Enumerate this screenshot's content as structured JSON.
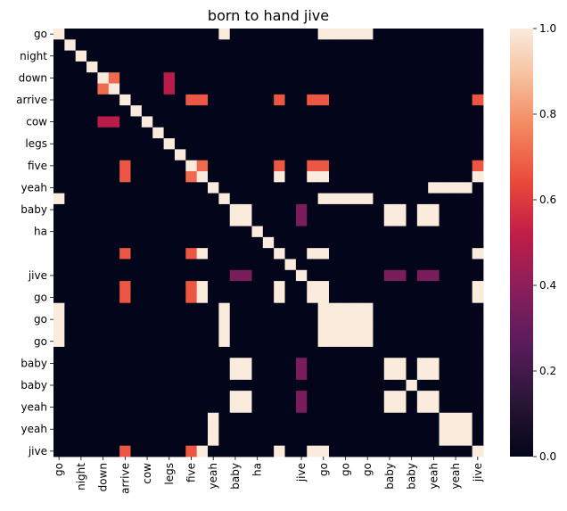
{
  "chart_data": {
    "type": "heatmap",
    "title": "born to hand jive",
    "x_labels": [
      "go",
      "",
      "night",
      "",
      "down",
      "",
      "arrive",
      "",
      "cow",
      "",
      "legs",
      "",
      "five",
      "",
      "yeah",
      "",
      "baby",
      "",
      "ha",
      "",
      "",
      "",
      "jive",
      "",
      "go",
      "",
      "go",
      "",
      "go",
      "",
      "baby",
      "",
      "baby",
      "",
      "yeah",
      "",
      "yeah",
      "",
      "jive"
    ],
    "y_labels": [
      "go",
      "",
      "night",
      "",
      "down",
      "",
      "arrive",
      "",
      "cow",
      "",
      "legs",
      "",
      "five",
      "",
      "yeah",
      "",
      "baby",
      "",
      "ha",
      "",
      "",
      "",
      "jive",
      "",
      "go",
      "",
      "go",
      "",
      "go",
      "",
      "baby",
      "",
      "baby",
      "",
      "yeah",
      "",
      "yeah",
      "",
      "jive"
    ],
    "colorbar": {
      "min": 0.0,
      "max": 1.0,
      "ticks": [
        "0.0",
        "0.2",
        "0.4",
        "0.6",
        "0.8",
        "1.0"
      ]
    },
    "cmap": "rocket",
    "values": [
      [
        1,
        0,
        0,
        0,
        0,
        0,
        0,
        0,
        0,
        0,
        0,
        0,
        0,
        0,
        0,
        1,
        0,
        0,
        0,
        0,
        0,
        0,
        0,
        0,
        1,
        1,
        1,
        1,
        1,
        0,
        0,
        0,
        0,
        0,
        0,
        0,
        0,
        0,
        0
      ],
      [
        0,
        1,
        0,
        0,
        0,
        0,
        0,
        0,
        0,
        0,
        0,
        0,
        0,
        0,
        0,
        0,
        0,
        0,
        0,
        0,
        0,
        0,
        0,
        0,
        0,
        0,
        0,
        0,
        0,
        0,
        0,
        0,
        0,
        0,
        0,
        0,
        0,
        0,
        0
      ],
      [
        0,
        0,
        1,
        0,
        0,
        0,
        0,
        0,
        0,
        0,
        0,
        0,
        0,
        0,
        0,
        0,
        0,
        0,
        0,
        0,
        0,
        0,
        0,
        0,
        0,
        0,
        0,
        0,
        0,
        0,
        0,
        0,
        0,
        0,
        0,
        0,
        0,
        0,
        0
      ],
      [
        0,
        0,
        0,
        1,
        0,
        0,
        0,
        0,
        0,
        0,
        0,
        0,
        0,
        0,
        0,
        0,
        0,
        0,
        0,
        0,
        0,
        0,
        0,
        0,
        0,
        0,
        0,
        0,
        0,
        0,
        0,
        0,
        0,
        0,
        0,
        0,
        0,
        0,
        0
      ],
      [
        0,
        0,
        0,
        0,
        1,
        0.71,
        0,
        0,
        0,
        0,
        0.5,
        0,
        0,
        0,
        0,
        0,
        0,
        0,
        0,
        0,
        0,
        0,
        0,
        0,
        0,
        0,
        0,
        0,
        0,
        0,
        0,
        0,
        0,
        0,
        0,
        0,
        0,
        0,
        0
      ],
      [
        0,
        0,
        0,
        0,
        0.71,
        1,
        0,
        0,
        0,
        0,
        0.5,
        0,
        0,
        0,
        0,
        0,
        0,
        0,
        0,
        0,
        0,
        0,
        0,
        0,
        0,
        0,
        0,
        0,
        0,
        0,
        0,
        0,
        0,
        0,
        0,
        0,
        0,
        0,
        0
      ],
      [
        0,
        0,
        0,
        0,
        0,
        0,
        1,
        0,
        0,
        0,
        0,
        0,
        0.67,
        0.67,
        0,
        0,
        0,
        0,
        0,
        0,
        0.67,
        0,
        0,
        0.67,
        0.67,
        0,
        0,
        0,
        0,
        0,
        0,
        0,
        0,
        0,
        0,
        0,
        0,
        0,
        0.67
      ],
      [
        0,
        0,
        0,
        0,
        0,
        0,
        0,
        1,
        0,
        0,
        0,
        0,
        0,
        0,
        0,
        0,
        0,
        0,
        0,
        0,
        0,
        0,
        0,
        0,
        0,
        0,
        0,
        0,
        0,
        0,
        0,
        0,
        0,
        0,
        0,
        0,
        0,
        0,
        0
      ],
      [
        0,
        0,
        0,
        0,
        0.5,
        0.5,
        0,
        0,
        1,
        0,
        0,
        0,
        0,
        0,
        0,
        0,
        0,
        0,
        0,
        0,
        0,
        0,
        0,
        0,
        0,
        0,
        0,
        0,
        0,
        0,
        0,
        0,
        0,
        0,
        0,
        0,
        0,
        0,
        0
      ],
      [
        0,
        0,
        0,
        0,
        0,
        0,
        0,
        0,
        0,
        1,
        0,
        0,
        0,
        0,
        0,
        0,
        0,
        0,
        0,
        0,
        0,
        0,
        0,
        0,
        0,
        0,
        0,
        0,
        0,
        0,
        0,
        0,
        0,
        0,
        0,
        0,
        0,
        0,
        0
      ],
      [
        0,
        0,
        0,
        0,
        0,
        0,
        0,
        0,
        0,
        0,
        1,
        0,
        0,
        0,
        0,
        0,
        0,
        0,
        0,
        0,
        0,
        0,
        0,
        0,
        0,
        0,
        0,
        0,
        0,
        0,
        0,
        0,
        0,
        0,
        0,
        0,
        0,
        0,
        0
      ],
      [
        0,
        0,
        0,
        0,
        0,
        0,
        0,
        0,
        0,
        0,
        0,
        1,
        0,
        0,
        0,
        0,
        0,
        0,
        0,
        0,
        0,
        0,
        0,
        0,
        0,
        0,
        0,
        0,
        0,
        0,
        0,
        0,
        0,
        0,
        0,
        0,
        0,
        0,
        0
      ],
      [
        0,
        0,
        0,
        0,
        0,
        0,
        0.67,
        0,
        0,
        0,
        0,
        0,
        1,
        0.71,
        0,
        0,
        0,
        0,
        0,
        0,
        0.67,
        0,
        0,
        0.67,
        0.67,
        0,
        0,
        0,
        0,
        0,
        0,
        0,
        0,
        0,
        0,
        0,
        0,
        0,
        0.67
      ],
      [
        0,
        0,
        0,
        0,
        0,
        0,
        0.67,
        0,
        0,
        0,
        0,
        0,
        0.71,
        1,
        0,
        0,
        0,
        0,
        0,
        0,
        1,
        0,
        0,
        1,
        1,
        0,
        0,
        0,
        0,
        0,
        0,
        0,
        0,
        0,
        0,
        0,
        0,
        0,
        1
      ],
      [
        0,
        0,
        0,
        0,
        0,
        0,
        0,
        0,
        0,
        0,
        0,
        0,
        0,
        0,
        1,
        0,
        0,
        0,
        0,
        0,
        0,
        0,
        0,
        0,
        0,
        0,
        0,
        0,
        0,
        0,
        0,
        0,
        0,
        0,
        1,
        1,
        1,
        1,
        0
      ],
      [
        1,
        0,
        0,
        0,
        0,
        0,
        0,
        0,
        0,
        0,
        0,
        0,
        0,
        0,
        0,
        1,
        0,
        0,
        0,
        0,
        0,
        0,
        0,
        0,
        1,
        1,
        1,
        1,
        1,
        0,
        0,
        0,
        0,
        0,
        0,
        0,
        0,
        0,
        0
      ],
      [
        0,
        0,
        0,
        0,
        0,
        0,
        0,
        0,
        0,
        0,
        0,
        0,
        0,
        0,
        0,
        0,
        1,
        1,
        0,
        0,
        0,
        0,
        0.35,
        0,
        0,
        0,
        0,
        0,
        0,
        0,
        1,
        1,
        0,
        1,
        1,
        0,
        0,
        0,
        0
      ],
      [
        0,
        0,
        0,
        0,
        0,
        0,
        0,
        0,
        0,
        0,
        0,
        0,
        0,
        0,
        0,
        0,
        1,
        1,
        0,
        0,
        0,
        0,
        0.35,
        0,
        0,
        0,
        0,
        0,
        0,
        0,
        1,
        1,
        0,
        1,
        1,
        0,
        0,
        0,
        0
      ],
      [
        0,
        0,
        0,
        0,
        0,
        0,
        0,
        0,
        0,
        0,
        0,
        0,
        0,
        0,
        0,
        0,
        0,
        0,
        1,
        0,
        0,
        0,
        0,
        0,
        0,
        0,
        0,
        0,
        0,
        0,
        0,
        0,
        0,
        0,
        0,
        0,
        0,
        0,
        0
      ],
      [
        0,
        0,
        0,
        0,
        0,
        0,
        0,
        0,
        0,
        0,
        0,
        0,
        0,
        0,
        0,
        0,
        0,
        0,
        0,
        1,
        0,
        0,
        0,
        0,
        0,
        0,
        0,
        0,
        0,
        0,
        0,
        0,
        0,
        0,
        0,
        0,
        0,
        0,
        0
      ],
      [
        0,
        0,
        0,
        0,
        0,
        0,
        0.67,
        0,
        0,
        0,
        0,
        0,
        0.67,
        1,
        0,
        0,
        0,
        0,
        0,
        0,
        1,
        0,
        0,
        1,
        1,
        0,
        0,
        0,
        0,
        0,
        0,
        0,
        0,
        0,
        0,
        0,
        0,
        0,
        1
      ],
      [
        0,
        0,
        0,
        0,
        0,
        0,
        0,
        0,
        0,
        0,
        0,
        0,
        0,
        0,
        0,
        0,
        0,
        0,
        0,
        0,
        0,
        1,
        0,
        0,
        0,
        0,
        0,
        0,
        0,
        0,
        0,
        0,
        0,
        0,
        0,
        0,
        0,
        0,
        0
      ],
      [
        0,
        0,
        0,
        0,
        0,
        0,
        0,
        0,
        0,
        0,
        0,
        0,
        0,
        0,
        0,
        0,
        0.35,
        0.35,
        0,
        0,
        0,
        0,
        1,
        0,
        0,
        0,
        0,
        0,
        0,
        0,
        0.35,
        0.35,
        0,
        0.35,
        0.35,
        0,
        0,
        0,
        0
      ],
      [
        0,
        0,
        0,
        0,
        0,
        0,
        0.67,
        0,
        0,
        0,
        0,
        0,
        0.67,
        1,
        0,
        0,
        0,
        0,
        0,
        0,
        1,
        0,
        0,
        1,
        1,
        0,
        0,
        0,
        0,
        0,
        0,
        0,
        0,
        0,
        0,
        0,
        0,
        0,
        1
      ],
      [
        0,
        0,
        0,
        0,
        0,
        0,
        0.67,
        0,
        0,
        0,
        0,
        0,
        0.67,
        1,
        0,
        0,
        0,
        0,
        0,
        0,
        1,
        0,
        0,
        1,
        1,
        0,
        0,
        0,
        0,
        0,
        0,
        0,
        0,
        0,
        0,
        0,
        0,
        0,
        1
      ],
      [
        1,
        0,
        0,
        0,
        0,
        0,
        0,
        0,
        0,
        0,
        0,
        0,
        0,
        0,
        0,
        1,
        0,
        0,
        0,
        0,
        0,
        0,
        0,
        0,
        1,
        1,
        1,
        1,
        1,
        0,
        0,
        0,
        0,
        0,
        0,
        0,
        0,
        0,
        0
      ],
      [
        1,
        0,
        0,
        0,
        0,
        0,
        0,
        0,
        0,
        0,
        0,
        0,
        0,
        0,
        0,
        1,
        0,
        0,
        0,
        0,
        0,
        0,
        0,
        0,
        1,
        1,
        1,
        1,
        1,
        0,
        0,
        0,
        0,
        0,
        0,
        0,
        0,
        0,
        0
      ],
      [
        1,
        0,
        0,
        0,
        0,
        0,
        0,
        0,
        0,
        0,
        0,
        0,
        0,
        0,
        0,
        1,
        0,
        0,
        0,
        0,
        0,
        0,
        0,
        0,
        1,
        1,
        1,
        1,
        1,
        0,
        0,
        0,
        0,
        0,
        0,
        0,
        0,
        0,
        0
      ],
      [
        1,
        0,
        0,
        0,
        0,
        0,
        0,
        0,
        0,
        0,
        0,
        0,
        0,
        0,
        0,
        1,
        0,
        0,
        0,
        0,
        0,
        0,
        0,
        0,
        1,
        1,
        1,
        1,
        1,
        0,
        0,
        0,
        0,
        0,
        0,
        0,
        0,
        0,
        0
      ],
      [
        0,
        0,
        0,
        0,
        0,
        0,
        0,
        0,
        0,
        0,
        0,
        0,
        0,
        0,
        0,
        0,
        0,
        0,
        0,
        0,
        0,
        0,
        0,
        0,
        0,
        0,
        0,
        0,
        0,
        0,
        0,
        0,
        0,
        0,
        0,
        0,
        0,
        0,
        0
      ],
      [
        0,
        0,
        0,
        0,
        0,
        0,
        0,
        0,
        0,
        0,
        0,
        0,
        0,
        0,
        0,
        0,
        1,
        1,
        0,
        0,
        0,
        0,
        0.35,
        0,
        0,
        0,
        0,
        0,
        0,
        0,
        1,
        1,
        0,
        1,
        1,
        0,
        0,
        0,
        0
      ],
      [
        0,
        0,
        0,
        0,
        0,
        0,
        0,
        0,
        0,
        0,
        0,
        0,
        0,
        0,
        0,
        0,
        1,
        1,
        0,
        0,
        0,
        0,
        0.35,
        0,
        0,
        0,
        0,
        0,
        0,
        0,
        1,
        1,
        0,
        1,
        1,
        0,
        0,
        0,
        0
      ],
      [
        0,
        0,
        0,
        0,
        0,
        0,
        0,
        0,
        0,
        0,
        0,
        0,
        0,
        0,
        0,
        0,
        0,
        0,
        0,
        0,
        0,
        0,
        0,
        0,
        0,
        0,
        0,
        0,
        0,
        0,
        0,
        0,
        1,
        0,
        0,
        0,
        0,
        0,
        0
      ],
      [
        0,
        0,
        0,
        0,
        0,
        0,
        0,
        0,
        0,
        0,
        0,
        0,
        0,
        0,
        0,
        0,
        1,
        1,
        0,
        0,
        0,
        0,
        0.35,
        0,
        0,
        0,
        0,
        0,
        0,
        0,
        1,
        1,
        0,
        1,
        1,
        0,
        0,
        0,
        0
      ],
      [
        0,
        0,
        0,
        0,
        0,
        0,
        0,
        0,
        0,
        0,
        0,
        0,
        0,
        0,
        0,
        0,
        1,
        1,
        0,
        0,
        0,
        0,
        0.35,
        0,
        0,
        0,
        0,
        0,
        0,
        0,
        1,
        1,
        0,
        1,
        1,
        0,
        0,
        0,
        0
      ],
      [
        0,
        0,
        0,
        0,
        0,
        0,
        0,
        0,
        0,
        0,
        0,
        0,
        0,
        0,
        1,
        0,
        0,
        0,
        0,
        0,
        0,
        0,
        0,
        0,
        0,
        0,
        0,
        0,
        0,
        0,
        0,
        0,
        0,
        0,
        0,
        1,
        1,
        1,
        0
      ],
      [
        0,
        0,
        0,
        0,
        0,
        0,
        0,
        0,
        0,
        0,
        0,
        0,
        0,
        0,
        1,
        0,
        0,
        0,
        0,
        0,
        0,
        0,
        0,
        0,
        0,
        0,
        0,
        0,
        0,
        0,
        0,
        0,
        0,
        0,
        0,
        1,
        1,
        1,
        0
      ],
      [
        0,
        0,
        0,
        0,
        0,
        0,
        0,
        0,
        0,
        0,
        0,
        0,
        0,
        0,
        1,
        0,
        0,
        0,
        0,
        0,
        0,
        0,
        0,
        0,
        0,
        0,
        0,
        0,
        0,
        0,
        0,
        0,
        0,
        0,
        0,
        1,
        1,
        1,
        0
      ],
      [
        0,
        0,
        0,
        0,
        0,
        0,
        0.67,
        0,
        0,
        0,
        0,
        0,
        0.67,
        1,
        0,
        0,
        0,
        0,
        0,
        0,
        1,
        0,
        0,
        1,
        1,
        0,
        0,
        0,
        0,
        0,
        0,
        0,
        0,
        0,
        0,
        0,
        0,
        0,
        1
      ]
    ]
  }
}
